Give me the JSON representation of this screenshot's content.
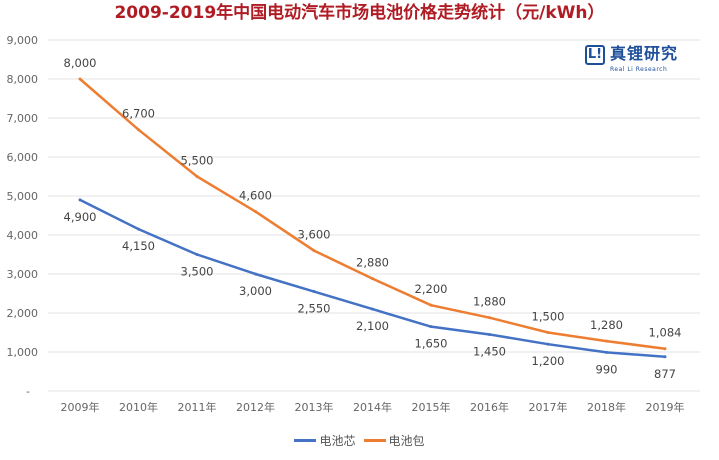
{
  "logo": {
    "name": "真锂研究",
    "sub": "Real Li Research"
  },
  "chart_data": {
    "type": "line",
    "title": "2009-2019年中国电动汽车市场电池价格走势统计（元/kWh）",
    "categories": [
      "2009年",
      "2010年",
      "2011年",
      "2012年",
      "2013年",
      "2014年",
      "2015年",
      "2016年",
      "2017年",
      "2018年",
      "2019年"
    ],
    "ylim": [
      0,
      9000
    ],
    "yticks": [
      0,
      1000,
      2000,
      3000,
      4000,
      5000,
      6000,
      7000,
      8000,
      9000
    ],
    "ytick_labels": [
      "-",
      "1,000",
      "2,000",
      "3,000",
      "4,000",
      "5,000",
      "6,000",
      "7,000",
      "8,000",
      "9,000"
    ],
    "grid": true,
    "legend": "bottom",
    "series": [
      {
        "name": "电池芯",
        "color": "#4472c4",
        "values": [
          4900,
          4150,
          3500,
          3000,
          2550,
          2100,
          1650,
          1450,
          1200,
          990,
          877
        ],
        "labels": [
          "4,900",
          "4,150",
          "3,500",
          "3,000",
          "2,550",
          "2,100",
          "1,650",
          "1,450",
          "1,200",
          "990",
          "877"
        ]
      },
      {
        "name": "电池包",
        "color": "#ed7d31",
        "values": [
          8000,
          6700,
          5500,
          4600,
          3600,
          2880,
          2200,
          1880,
          1500,
          1280,
          1084
        ],
        "labels": [
          "8,000",
          "6,700",
          "5,500",
          "4,600",
          "3,600",
          "2,880",
          "2,200",
          "1,880",
          "1,500",
          "1,280",
          "1,084"
        ]
      }
    ]
  }
}
